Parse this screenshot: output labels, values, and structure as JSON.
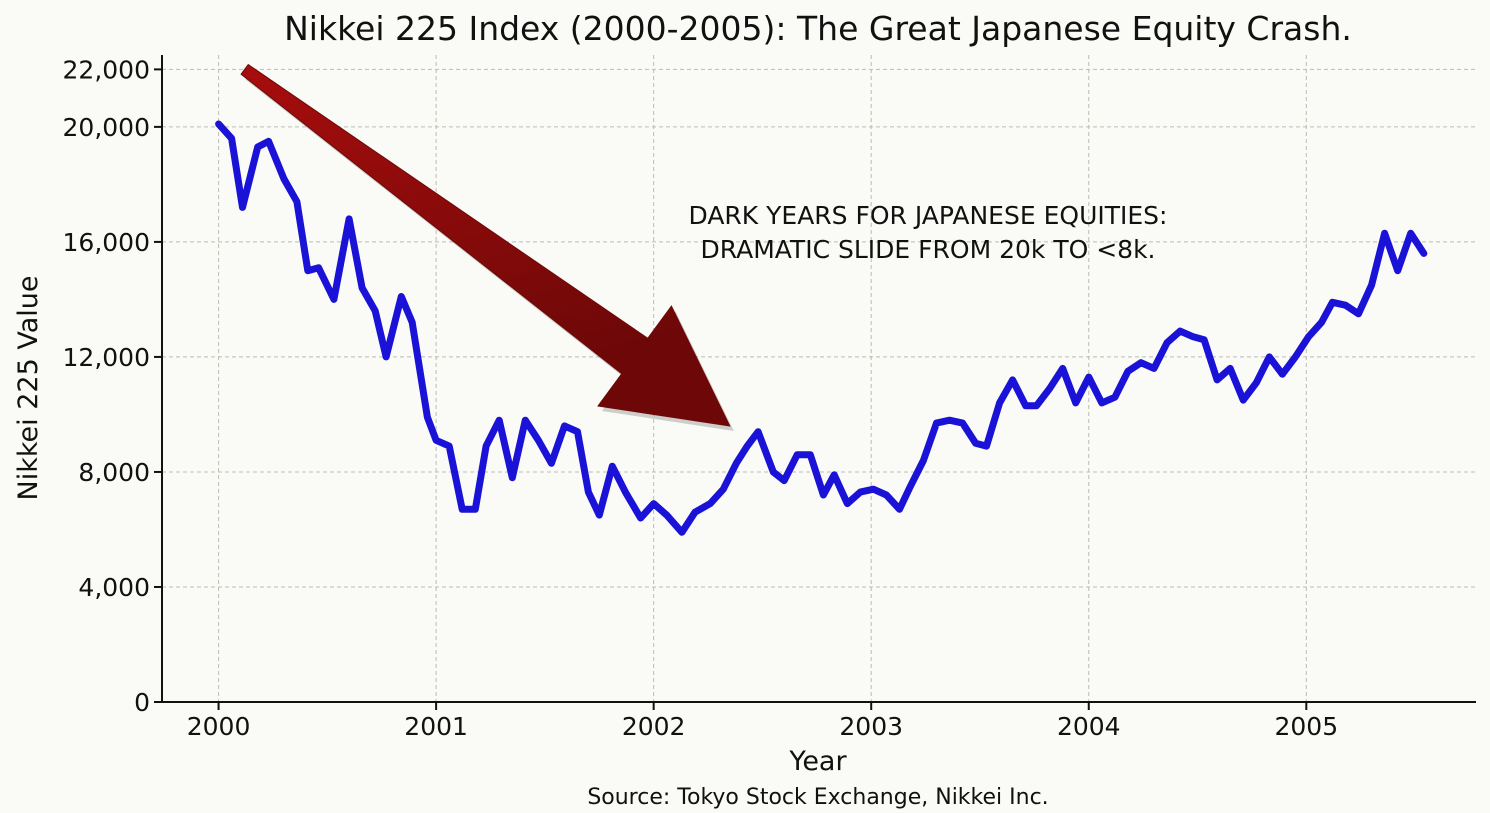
{
  "chart_data": {
    "type": "line",
    "title": "Nikkei 225 Index (2000-2005): The Great Japanese Equity Crash.",
    "xlabel": "Year",
    "ylabel": "Nikkei 225 Value",
    "source": "Source: Tokyo Stock Exchange, Nikkei Inc.",
    "annotation": [
      "DARK YEARS FOR JAPANESE EQUITIES:",
      "DRAMATIC SLIDE FROM 20k TO <8k."
    ],
    "xlim": [
      1999.74,
      2005.78
    ],
    "ylim": [
      0,
      22500
    ],
    "grid": true,
    "colors": {
      "line": "#1a12d6",
      "arrow": "#a80d0d",
      "arrow_dark": "#6e0808",
      "background": "#fafaf6"
    },
    "x_ticks": [
      {
        "value": 2000,
        "label": "2000"
      },
      {
        "value": 2001,
        "label": "2001"
      },
      {
        "value": 2002,
        "label": "2002"
      },
      {
        "value": 2003,
        "label": "2003"
      },
      {
        "value": 2004,
        "label": "2004"
      },
      {
        "value": 2005,
        "label": "2005"
      }
    ],
    "y_ticks": [
      {
        "value": 0,
        "label": "0"
      },
      {
        "value": 4000,
        "label": "4,000"
      },
      {
        "value": 8000,
        "label": "8,000"
      },
      {
        "value": 12000,
        "label": "12,000"
      },
      {
        "value": 16000,
        "label": "16,000"
      },
      {
        "value": 20000,
        "label": "20,000"
      },
      {
        "value": 22000,
        "label": "22,000"
      }
    ],
    "arrow": {
      "from": [
        2000.12,
        22000
      ],
      "to": [
        2002.35,
        9600
      ]
    },
    "series": [
      {
        "values": [
          [
            2000.0,
            20100
          ],
          [
            2000.06,
            19600
          ],
          [
            2000.11,
            17200
          ],
          [
            2000.18,
            19300
          ],
          [
            2000.23,
            19500
          ],
          [
            2000.3,
            18200
          ],
          [
            2000.36,
            17400
          ],
          [
            2000.41,
            15000
          ],
          [
            2000.46,
            15100
          ],
          [
            2000.53,
            14000
          ],
          [
            2000.6,
            16800
          ],
          [
            2000.66,
            14400
          ],
          [
            2000.72,
            13600
          ],
          [
            2000.77,
            12000
          ],
          [
            2000.84,
            14100
          ],
          [
            2000.89,
            13200
          ],
          [
            2000.96,
            9900
          ],
          [
            2001.0,
            9100
          ],
          [
            2001.06,
            8900
          ],
          [
            2001.12,
            6700
          ],
          [
            2001.18,
            6700
          ],
          [
            2001.23,
            8900
          ],
          [
            2001.29,
            9800
          ],
          [
            2001.35,
            7800
          ],
          [
            2001.41,
            9800
          ],
          [
            2001.47,
            9100
          ],
          [
            2001.53,
            8300
          ],
          [
            2001.59,
            9600
          ],
          [
            2001.65,
            9400
          ],
          [
            2001.7,
            7300
          ],
          [
            2001.75,
            6500
          ],
          [
            2001.81,
            8200
          ],
          [
            2001.87,
            7300
          ],
          [
            2001.94,
            6400
          ],
          [
            2002.0,
            6900
          ],
          [
            2002.06,
            6500
          ],
          [
            2002.13,
            5900
          ],
          [
            2002.19,
            6600
          ],
          [
            2002.26,
            6900
          ],
          [
            2002.32,
            7400
          ],
          [
            2002.38,
            8300
          ],
          [
            2002.43,
            8900
          ],
          [
            2002.48,
            9400
          ],
          [
            2002.55,
            8000
          ],
          [
            2002.6,
            7700
          ],
          [
            2002.66,
            8600
          ],
          [
            2002.72,
            8600
          ],
          [
            2002.78,
            7200
          ],
          [
            2002.83,
            7900
          ],
          [
            2002.89,
            6900
          ],
          [
            2002.95,
            7300
          ],
          [
            2003.01,
            7400
          ],
          [
            2003.07,
            7200
          ],
          [
            2003.13,
            6700
          ],
          [
            2003.18,
            7500
          ],
          [
            2003.24,
            8400
          ],
          [
            2003.3,
            9700
          ],
          [
            2003.36,
            9800
          ],
          [
            2003.42,
            9700
          ],
          [
            2003.48,
            9000
          ],
          [
            2003.53,
            8900
          ],
          [
            2003.59,
            10400
          ],
          [
            2003.65,
            11200
          ],
          [
            2003.71,
            10300
          ],
          [
            2003.76,
            10300
          ],
          [
            2003.82,
            10900
          ],
          [
            2003.88,
            11600
          ],
          [
            2003.94,
            10400
          ],
          [
            2004.0,
            11300
          ],
          [
            2004.06,
            10400
          ],
          [
            2004.12,
            10600
          ],
          [
            2004.18,
            11500
          ],
          [
            2004.24,
            11800
          ],
          [
            2004.3,
            11600
          ],
          [
            2004.36,
            12500
          ],
          [
            2004.42,
            12900
          ],
          [
            2004.48,
            12700
          ],
          [
            2004.53,
            12600
          ],
          [
            2004.59,
            11200
          ],
          [
            2004.65,
            11600
          ],
          [
            2004.71,
            10500
          ],
          [
            2004.77,
            11100
          ],
          [
            2004.83,
            12000
          ],
          [
            2004.89,
            11400
          ],
          [
            2004.95,
            12000
          ],
          [
            2005.01,
            12700
          ],
          [
            2005.07,
            13200
          ],
          [
            2005.12,
            13900
          ],
          [
            2005.18,
            13800
          ],
          [
            2005.24,
            13500
          ],
          [
            2005.3,
            14500
          ],
          [
            2005.36,
            16300
          ],
          [
            2005.42,
            15000
          ],
          [
            2005.48,
            16300
          ],
          [
            2005.54,
            15600
          ]
        ]
      }
    ]
  }
}
